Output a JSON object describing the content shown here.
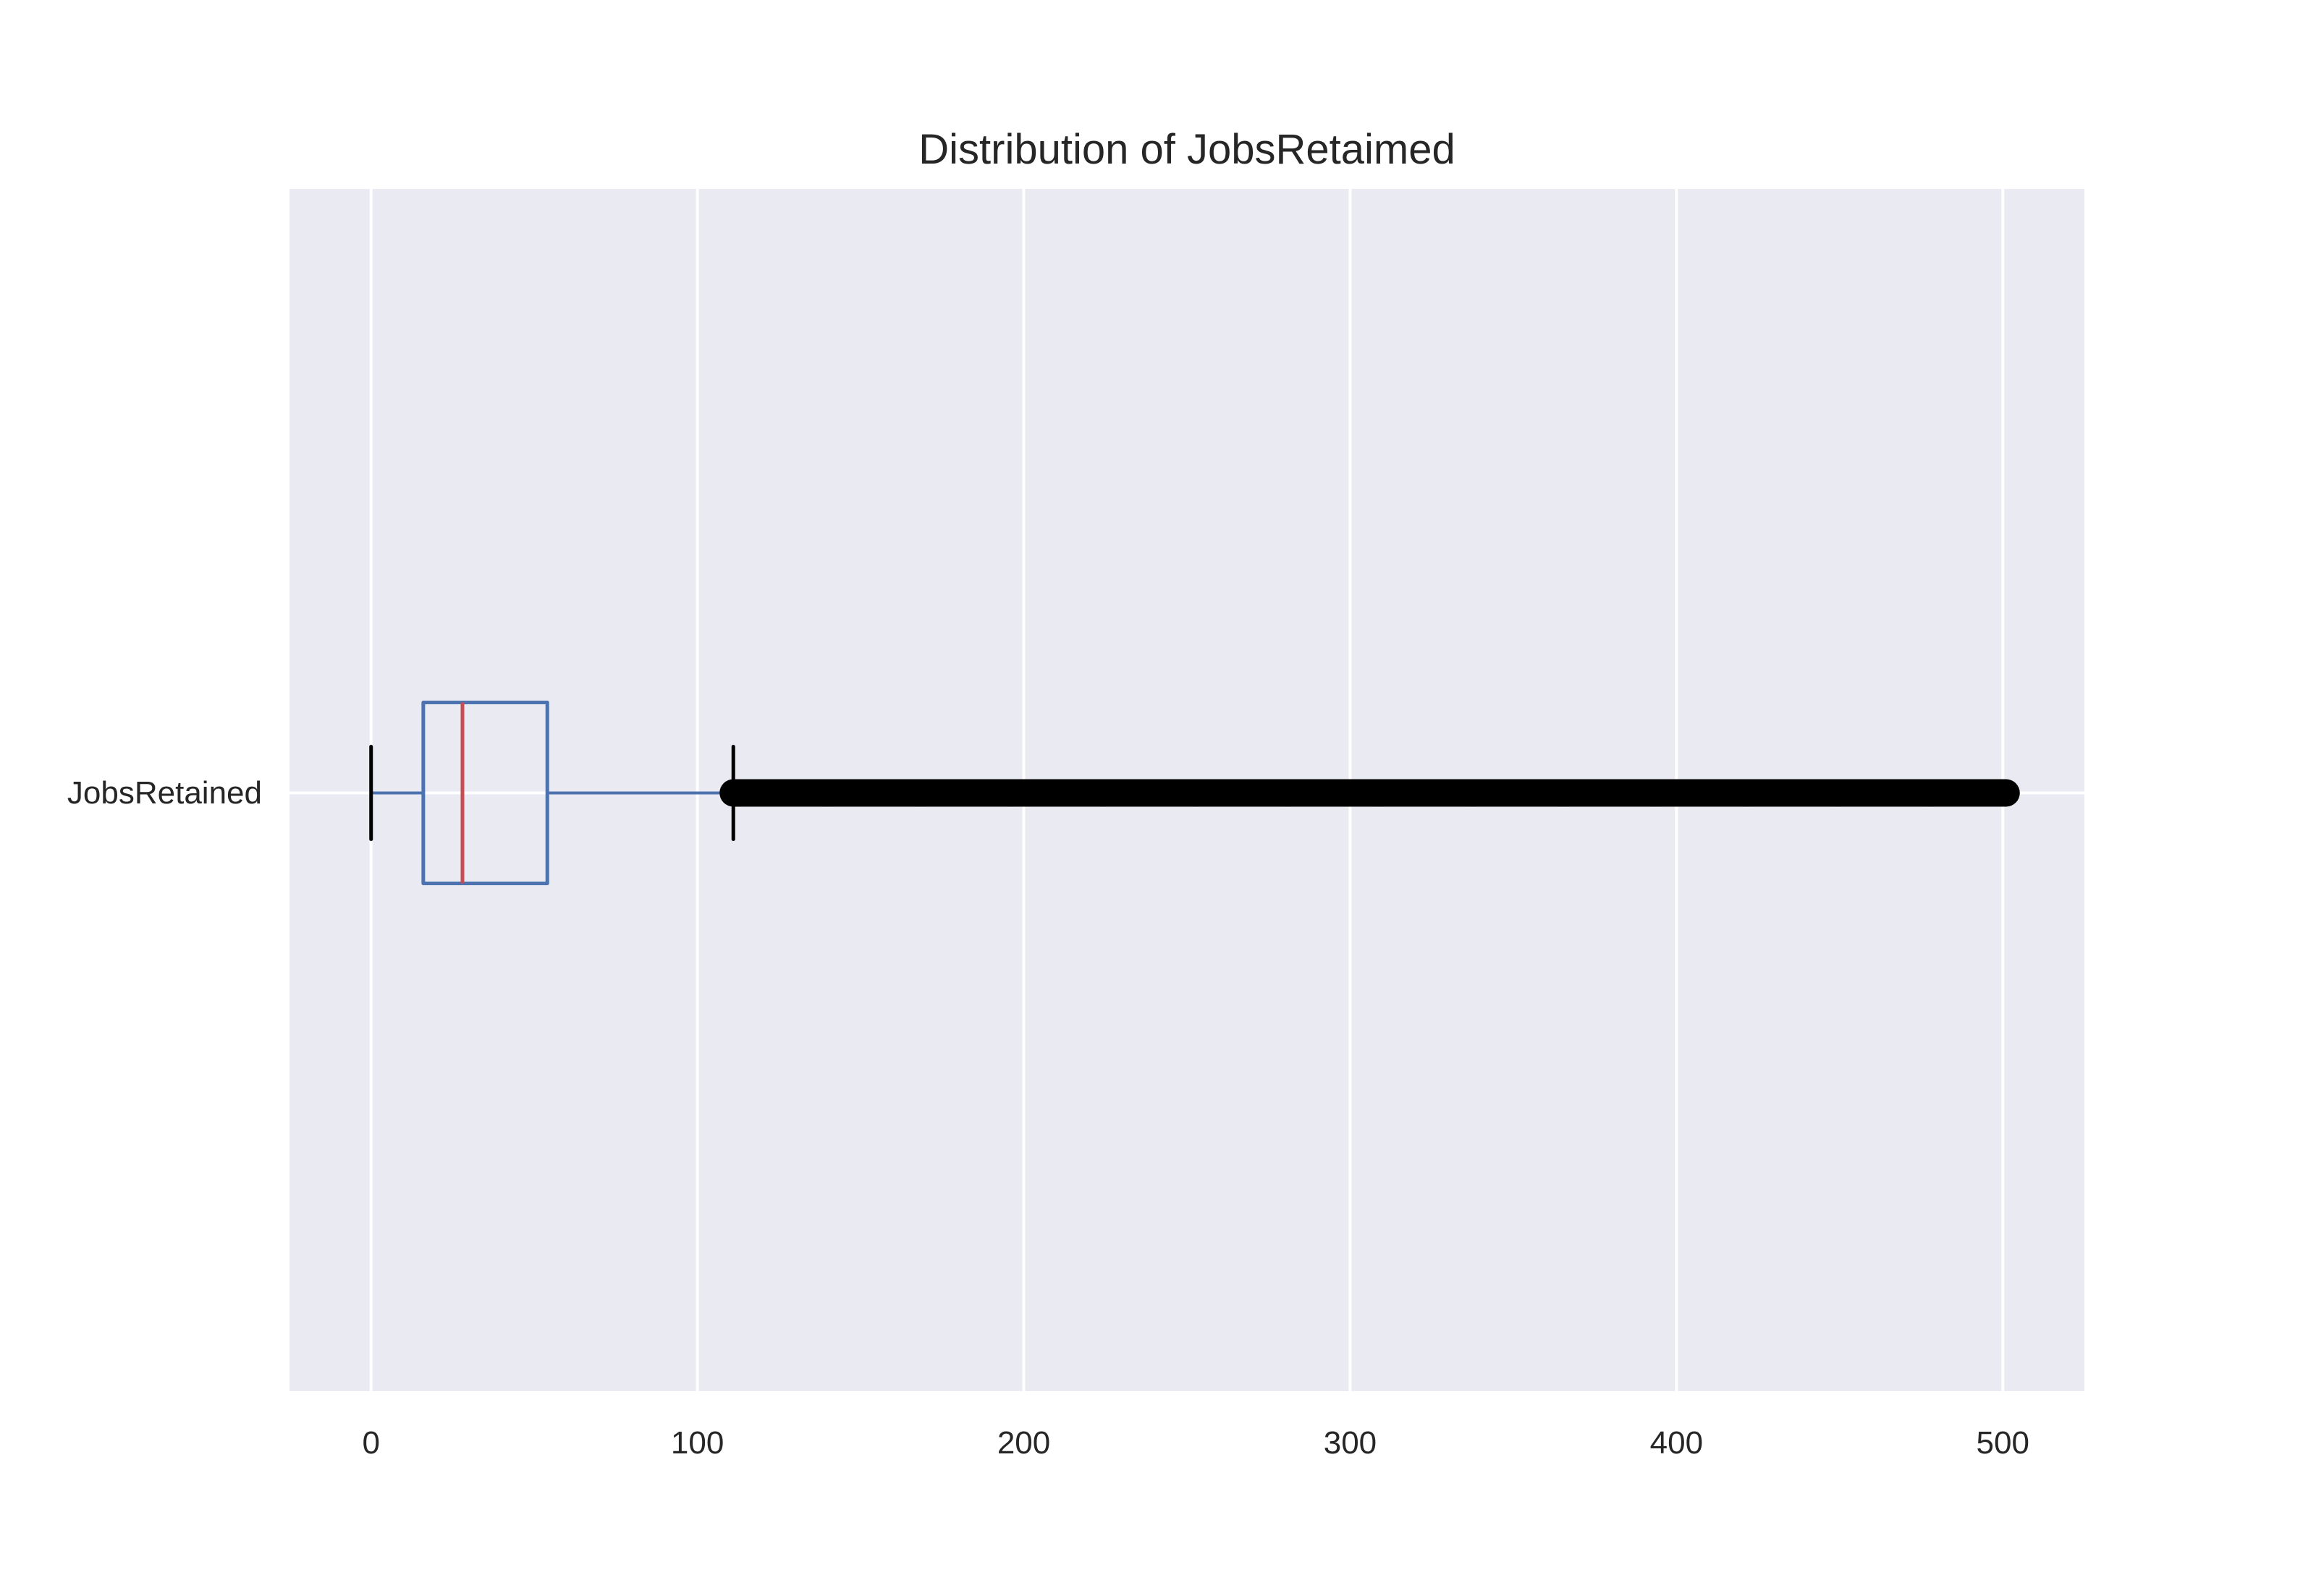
{
  "chart_data": {
    "type": "box",
    "orientation": "horizontal",
    "title": "Distribution of JobsRetaimed",
    "xlabel": "",
    "ylabel": "",
    "xlim": [
      -25,
      525
    ],
    "xticks": [
      0,
      100,
      200,
      300,
      400,
      500
    ],
    "xtick_labels": [
      "0",
      "100",
      "200",
      "300",
      "400",
      "500"
    ],
    "grid": true,
    "categories": [
      "JobsRetained"
    ],
    "boxes": [
      {
        "label": "JobsRetained",
        "whisker_low": 0,
        "q1": 16,
        "median": 28,
        "q3": 54,
        "whisker_high": 111,
        "outliers_range": [
          111,
          501
        ]
      }
    ],
    "colors": {
      "background": "#eaeaf2",
      "grid": "#ffffff",
      "box": "#4c72b0",
      "median": "#c44e52",
      "caps": "#000000",
      "outliers": "#000000"
    }
  }
}
